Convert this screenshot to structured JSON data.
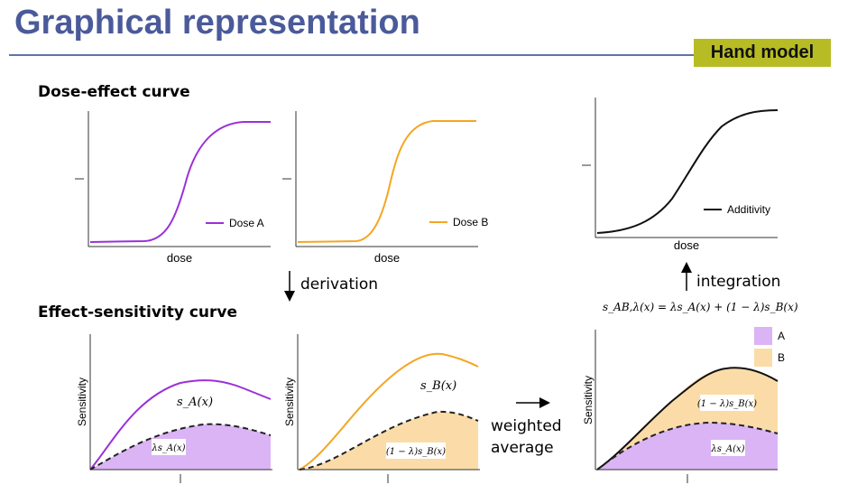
{
  "header": {
    "title": "Graphical representation",
    "badge": "Hand model"
  },
  "colors": {
    "title": "#4a5a9a",
    "badge_bg": "#b8bc24",
    "drug_a": "#9b30d9",
    "drug_a_fill": "#dbb4f5",
    "drug_b": "#f5a623",
    "drug_b_fill": "#fbdca8",
    "additivity": "#111111"
  },
  "sections": {
    "dose_effect": "Dose-effect curve",
    "effect_sensitivity": "Effect-sensitivity curve"
  },
  "steps": {
    "derivation": "derivation",
    "integration": "integration",
    "weighted_average_line1": "weighted",
    "weighted_average_line2": "average"
  },
  "formula": "s_AB,λ(x) = λs_A(x) + (1 − λ)s_B(x)",
  "plots": {
    "dose_a": {
      "xlabel": "dose",
      "legend": "Dose A"
    },
    "dose_b": {
      "xlabel": "dose",
      "legend": "Dose B"
    },
    "additivity": {
      "xlabel": "dose",
      "legend": "Additivity"
    },
    "sens_a": {
      "ylabel": "Sensitivity",
      "curve_label": "s_A(x)",
      "area_label": "λs_A(x)"
    },
    "sens_b": {
      "ylabel": "Sensitivity",
      "curve_label": "s_B(x)",
      "area_label": "(1 − λ)s_B(x)"
    },
    "sens_ab": {
      "ylabel": "Sensitivity",
      "upper_label": "(1 − λ)s_B(x)",
      "lower_label": "λs_A(x)",
      "legend": [
        {
          "key": "A"
        },
        {
          "key": "B"
        }
      ]
    }
  }
}
